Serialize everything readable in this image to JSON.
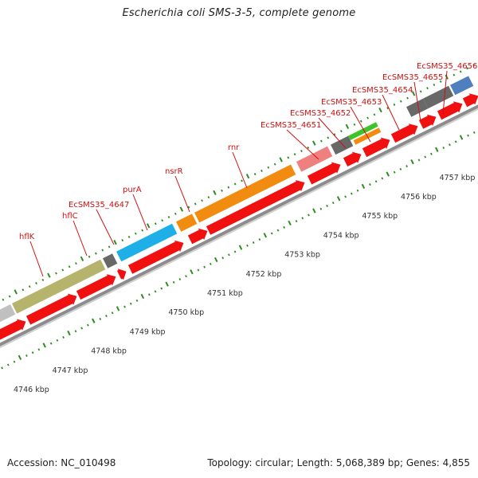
{
  "title": "Escherichia coli SMS-3-5, complete genome",
  "footer": {
    "accession": "Accession: NC_010498",
    "summary": "Topology: circular; Length: 5,068,389 bp; Genes: 4,855"
  },
  "colors": {
    "cds": "#f01010",
    "label": "#d01010",
    "backbone": "#8c8c8c",
    "tick": "#2e8b1f",
    "gray": "#c0c0c0",
    "olive": "#b6b46c",
    "darkgray": "#686868",
    "cyan": "#1eaee8",
    "orange": "#f28c10",
    "pink": "#ef8080",
    "green": "#3ec42a",
    "blue": "#4f7fbf"
  },
  "scale_unit": "kbp",
  "scale_ticks": [
    "4746 kbp",
    "4747 kbp",
    "4748 kbp",
    "4749 kbp",
    "4750 kbp",
    "4751 kbp",
    "4752 kbp",
    "4753 kbp",
    "4754 kbp",
    "4755 kbp",
    "4756 kbp",
    "4757 kbp"
  ],
  "gene_labels": [
    "hflK",
    "hflC",
    "EcSMS35_4647",
    "purA",
    "nsrR",
    "rnr",
    "EcSMS35_4651",
    "EcSMS35_4652",
    "EcSMS35_4653",
    "EcSMS35_4654",
    "EcSMS35_4655",
    "EcSMS35_4656"
  ]
}
